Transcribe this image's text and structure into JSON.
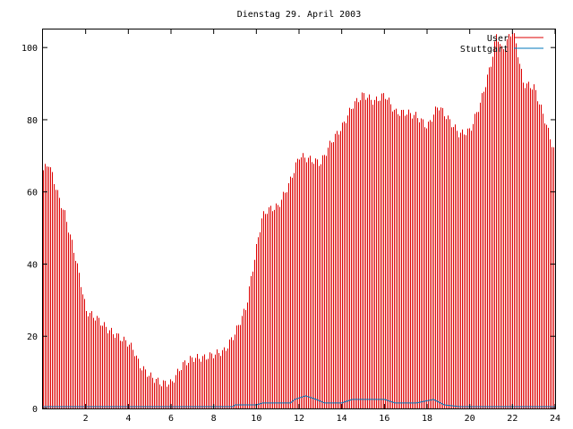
{
  "chart_data": {
    "type": "bar",
    "title": "Dienstag 29. April 2003",
    "xlabel": "",
    "ylabel": "",
    "xlim": [
      0,
      24
    ],
    "ylim": [
      0,
      105
    ],
    "x_ticks": [
      2,
      4,
      6,
      8,
      10,
      12,
      14,
      16,
      18,
      20,
      22,
      24
    ],
    "x_tick_labels": [
      "2",
      "4",
      "6",
      "8",
      "10",
      "12",
      "14",
      "16",
      "18",
      "20",
      "22",
      "24"
    ],
    "y_ticks": [
      0,
      20,
      40,
      60,
      80,
      100
    ],
    "y_tick_labels": [
      "0",
      "20",
      "40",
      "60",
      "80",
      "100"
    ],
    "grid": false,
    "legend_position": "top-right",
    "series": [
      {
        "name": "User",
        "style": "impulses",
        "color": "#dd0000",
        "points": [
          [
            0,
            66
          ],
          [
            0.25,
            68
          ],
          [
            0.5,
            63
          ],
          [
            0.75,
            58
          ],
          [
            1,
            54
          ],
          [
            1.25,
            48
          ],
          [
            1.5,
            42
          ],
          [
            1.75,
            35
          ],
          [
            2,
            27
          ],
          [
            2.5,
            25
          ],
          [
            3,
            22
          ],
          [
            3.5,
            20
          ],
          [
            4,
            18
          ],
          [
            4.25,
            16
          ],
          [
            4.5,
            12
          ],
          [
            5,
            9
          ],
          [
            5.5,
            7
          ],
          [
            6,
            7
          ],
          [
            6.5,
            12
          ],
          [
            7,
            14
          ],
          [
            7.5,
            14
          ],
          [
            8,
            15
          ],
          [
            8.5,
            16
          ],
          [
            9,
            21
          ],
          [
            9.5,
            28
          ],
          [
            10,
            45
          ],
          [
            10.25,
            53
          ],
          [
            10.5,
            55
          ],
          [
            11,
            56
          ],
          [
            11.5,
            62
          ],
          [
            12,
            70
          ],
          [
            12.5,
            69
          ],
          [
            13,
            68
          ],
          [
            13.5,
            74
          ],
          [
            14,
            78
          ],
          [
            14.5,
            84
          ],
          [
            15,
            87
          ],
          [
            15.5,
            85
          ],
          [
            16,
            87
          ],
          [
            16.5,
            82
          ],
          [
            17,
            82
          ],
          [
            17.5,
            81
          ],
          [
            18,
            78
          ],
          [
            18.5,
            84
          ],
          [
            19,
            80
          ],
          [
            19.5,
            76
          ],
          [
            20,
            77
          ],
          [
            20.5,
            85
          ],
          [
            21,
            96
          ],
          [
            21.25,
            104
          ],
          [
            21.5,
            99
          ],
          [
            22,
            105
          ],
          [
            22.25,
            98
          ],
          [
            22.5,
            90
          ],
          [
            23,
            89
          ],
          [
            23.5,
            80
          ],
          [
            24,
            70
          ]
        ]
      },
      {
        "name": "Stuttgart",
        "style": "lines",
        "color": "#0077bb",
        "points": [
          [
            0,
            0.5
          ],
          [
            2,
            0.5
          ],
          [
            8.9,
            0.5
          ],
          [
            9,
            1
          ],
          [
            10,
            1
          ],
          [
            10.3,
            1.5
          ],
          [
            11.6,
            1.5
          ],
          [
            11.8,
            2.5
          ],
          [
            12.3,
            3.5
          ],
          [
            12.8,
            2.5
          ],
          [
            13.2,
            1.5
          ],
          [
            14,
            1.5
          ],
          [
            14.5,
            2.5
          ],
          [
            16,
            2.5
          ],
          [
            16.5,
            1.5
          ],
          [
            17.5,
            1.5
          ],
          [
            18.3,
            2.5
          ],
          [
            18.8,
            1
          ],
          [
            19.5,
            0.5
          ],
          [
            24,
            0.5
          ]
        ]
      }
    ]
  }
}
